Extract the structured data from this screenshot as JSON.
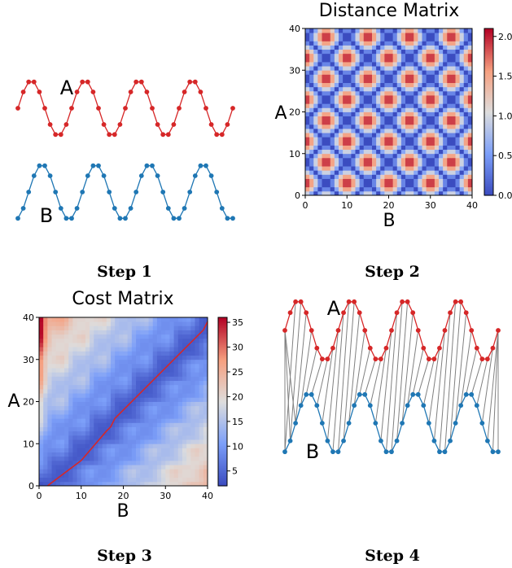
{
  "series_labels": {
    "a": "A",
    "b": "B"
  },
  "colors": {
    "series_a": "#d62728",
    "series_b": "#1f77b4",
    "path": "#d62728",
    "link": "#808080"
  },
  "captions": {
    "step1": "Step 1",
    "step2": "Step 2",
    "step3": "Step 3",
    "step4": "Step 4"
  },
  "chart_data": [
    {
      "type": "line",
      "panel": "Step 1",
      "series": [
        {
          "name": "A",
          "values": [
            0.0,
            0.588,
            0.951,
            0.951,
            0.588,
            0.0,
            -0.588,
            -0.951,
            -0.951,
            -0.588,
            0.0,
            0.588,
            0.951,
            0.951,
            0.588,
            0.0,
            -0.588,
            -0.951,
            -0.951,
            -0.588,
            0.0,
            0.588,
            0.951,
            0.951,
            0.588,
            0.0,
            -0.588,
            -0.951,
            -0.951,
            -0.588,
            0.0,
            0.588,
            0.951,
            0.951,
            0.588,
            0.0,
            -0.588,
            -0.951,
            -0.951,
            -0.588,
            0.0
          ]
        },
        {
          "name": "B",
          "values": [
            -0.951,
            -0.588,
            0.0,
            0.588,
            0.951,
            0.951,
            0.588,
            0.0,
            -0.588,
            -0.951,
            -0.951,
            -0.588,
            0.0,
            0.588,
            0.951,
            0.951,
            0.588,
            0.0,
            -0.588,
            -0.951,
            -0.951,
            -0.588,
            0.0,
            0.588,
            0.951,
            0.951,
            0.588,
            0.0,
            -0.588,
            -0.951,
            -0.951,
            -0.588,
            0.0,
            0.588,
            0.951,
            0.951,
            0.588,
            0.0,
            -0.588,
            -0.951,
            -0.951
          ]
        }
      ]
    },
    {
      "type": "heatmap",
      "panel": "Step 2",
      "title": "Distance Matrix",
      "xlabel": "B",
      "ylabel": "A",
      "xlim": [
        0,
        40
      ],
      "ylim": [
        0,
        40
      ],
      "xticks": [
        "0",
        "10",
        "20",
        "30",
        "40"
      ],
      "yticks": [
        "0",
        "10",
        "20",
        "30",
        "40"
      ],
      "colorbar_ticks": [
        "0.0",
        "0.5",
        "1.0",
        "1.5",
        "2.0"
      ],
      "value_range": [
        0,
        2.1
      ],
      "cell": "|A[i] - B[j]|",
      "colormap": "coolwarm"
    },
    {
      "type": "heatmap",
      "panel": "Step 3",
      "title": "Cost Matrix",
      "xlabel": "B",
      "ylabel": "A",
      "xlim": [
        0,
        40
      ],
      "ylim": [
        0,
        40
      ],
      "xticks": [
        "0",
        "10",
        "20",
        "30",
        "40"
      ],
      "yticks": [
        "0",
        "10",
        "20",
        "30",
        "40"
      ],
      "colorbar_ticks": [
        "5",
        "10",
        "15",
        "20",
        "25",
        "30",
        "35"
      ],
      "value_range": [
        2,
        36
      ],
      "cell": "cumulative DTW cost",
      "colormap": "coolwarm",
      "warp_path": [
        [
          2,
          0
        ],
        [
          10,
          6
        ],
        [
          16,
          13
        ],
        [
          17,
          14
        ],
        [
          18,
          16
        ],
        [
          39,
          37
        ],
        [
          40,
          39
        ]
      ]
    },
    {
      "type": "line",
      "panel": "Step 4",
      "series": [
        {
          "name": "A",
          "values": [
            0.0,
            0.588,
            0.951,
            0.951,
            0.588,
            0.0,
            -0.588,
            -0.951,
            -0.951,
            -0.588,
            0.0,
            0.588,
            0.951,
            0.951,
            0.588,
            0.0,
            -0.588,
            -0.951,
            -0.951,
            -0.588,
            0.0,
            0.588,
            0.951,
            0.951,
            0.588,
            0.0,
            -0.588,
            -0.951,
            -0.951,
            -0.588,
            0.0,
            0.588,
            0.951,
            0.951,
            0.588,
            0.0,
            -0.588,
            -0.951,
            -0.951,
            -0.588,
            0.0
          ]
        },
        {
          "name": "B",
          "values": [
            -0.951,
            -0.588,
            0.0,
            0.588,
            0.951,
            0.951,
            0.588,
            0.0,
            -0.588,
            -0.951,
            -0.951,
            -0.588,
            0.0,
            0.588,
            0.951,
            0.951,
            0.588,
            0.0,
            -0.588,
            -0.951,
            -0.951,
            -0.588,
            0.0,
            0.588,
            0.951,
            0.951,
            0.588,
            0.0,
            -0.588,
            -0.951,
            -0.951,
            -0.588,
            0.0,
            0.588,
            0.951,
            0.951,
            0.588,
            0.0,
            -0.588,
            -0.951,
            -0.951
          ]
        }
      ],
      "alignment": "DTW warp path links"
    }
  ]
}
